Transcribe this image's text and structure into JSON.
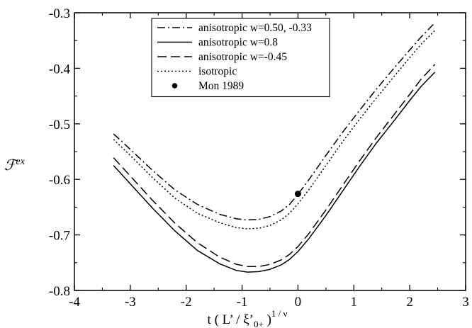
{
  "chart_data": {
    "type": "line",
    "title": "",
    "xlabel": {
      "text": "t ( L’ / ξ’",
      "sub": "0+",
      "close": " )",
      "sup": "1 / ν"
    },
    "ylabel": {
      "main": "ℱ",
      "sup": "ex"
    },
    "xlim": [
      -4,
      3
    ],
    "ylim": [
      -0.8,
      -0.3
    ],
    "xticks": [
      -4,
      -3,
      -2,
      -1,
      0,
      1,
      2,
      3
    ],
    "yticks": [
      -0.8,
      -0.7,
      -0.6,
      -0.5,
      -0.4,
      -0.3
    ],
    "xtick_labels": [
      "-4",
      "-3",
      "-2",
      "-1",
      "0",
      "1",
      "2",
      "3"
    ],
    "ytick_labels": [
      "-0.8",
      "-0.7",
      "-0.6",
      "-0.5",
      "-0.4",
      "-0.3"
    ],
    "grid": false,
    "legend_position": "top-center",
    "series": [
      {
        "name": "anisotropic w=0.50, -0.33",
        "style": "dashdot",
        "color": "#000000",
        "points": [
          [
            -3.3,
            -0.518
          ],
          [
            -3.0,
            -0.546
          ],
          [
            -2.6,
            -0.584
          ],
          [
            -2.2,
            -0.619
          ],
          [
            -1.8,
            -0.645
          ],
          [
            -1.4,
            -0.663
          ],
          [
            -1.1,
            -0.671
          ],
          [
            -0.9,
            -0.673
          ],
          [
            -0.7,
            -0.672
          ],
          [
            -0.5,
            -0.667
          ],
          [
            -0.3,
            -0.657
          ],
          [
            -0.15,
            -0.645
          ],
          [
            0.0,
            -0.627
          ],
          [
            0.2,
            -0.6
          ],
          [
            0.5,
            -0.557
          ],
          [
            0.8,
            -0.515
          ],
          [
            1.1,
            -0.476
          ],
          [
            1.4,
            -0.438
          ],
          [
            1.7,
            -0.402
          ],
          [
            2.0,
            -0.367
          ],
          [
            2.2,
            -0.344
          ],
          [
            2.45,
            -0.318
          ]
        ]
      },
      {
        "name": "anisotropic w=0.8",
        "style": "solid",
        "color": "#000000",
        "points": [
          [
            -3.3,
            -0.575
          ],
          [
            -3.0,
            -0.608
          ],
          [
            -2.6,
            -0.652
          ],
          [
            -2.2,
            -0.693
          ],
          [
            -1.8,
            -0.728
          ],
          [
            -1.4,
            -0.752
          ],
          [
            -1.1,
            -0.764
          ],
          [
            -0.9,
            -0.767
          ],
          [
            -0.7,
            -0.766
          ],
          [
            -0.5,
            -0.762
          ],
          [
            -0.3,
            -0.754
          ],
          [
            -0.15,
            -0.744
          ],
          [
            0.0,
            -0.73
          ],
          [
            0.2,
            -0.706
          ],
          [
            0.5,
            -0.665
          ],
          [
            0.8,
            -0.621
          ],
          [
            1.1,
            -0.577
          ],
          [
            1.4,
            -0.535
          ],
          [
            1.7,
            -0.497
          ],
          [
            2.0,
            -0.458
          ],
          [
            2.2,
            -0.433
          ],
          [
            2.45,
            -0.407
          ]
        ]
      },
      {
        "name": "anisotropic w=-0.45",
        "style": "dashed",
        "color": "#000000",
        "points": [
          [
            -3.3,
            -0.561
          ],
          [
            -3.0,
            -0.594
          ],
          [
            -2.6,
            -0.638
          ],
          [
            -2.2,
            -0.679
          ],
          [
            -1.8,
            -0.714
          ],
          [
            -1.4,
            -0.74
          ],
          [
            -1.1,
            -0.753
          ],
          [
            -0.9,
            -0.757
          ],
          [
            -0.7,
            -0.757
          ],
          [
            -0.5,
            -0.753
          ],
          [
            -0.3,
            -0.745
          ],
          [
            -0.15,
            -0.735
          ],
          [
            0.0,
            -0.721
          ],
          [
            0.2,
            -0.697
          ],
          [
            0.5,
            -0.655
          ],
          [
            0.8,
            -0.611
          ],
          [
            1.1,
            -0.567
          ],
          [
            1.4,
            -0.525
          ],
          [
            1.7,
            -0.486
          ],
          [
            2.0,
            -0.447
          ],
          [
            2.2,
            -0.42
          ],
          [
            2.45,
            -0.393
          ]
        ]
      },
      {
        "name": "isotropic",
        "style": "dotted",
        "color": "#000000",
        "points": [
          [
            -3.3,
            -0.528
          ],
          [
            -3.0,
            -0.557
          ],
          [
            -2.6,
            -0.597
          ],
          [
            -2.2,
            -0.634
          ],
          [
            -1.8,
            -0.661
          ],
          [
            -1.4,
            -0.678
          ],
          [
            -1.1,
            -0.687
          ],
          [
            -0.9,
            -0.689
          ],
          [
            -0.7,
            -0.688
          ],
          [
            -0.5,
            -0.683
          ],
          [
            -0.3,
            -0.673
          ],
          [
            -0.15,
            -0.661
          ],
          [
            0.0,
            -0.644
          ],
          [
            0.2,
            -0.618
          ],
          [
            0.5,
            -0.575
          ],
          [
            0.8,
            -0.532
          ],
          [
            1.1,
            -0.492
          ],
          [
            1.4,
            -0.454
          ],
          [
            1.7,
            -0.417
          ],
          [
            2.0,
            -0.381
          ],
          [
            2.2,
            -0.357
          ],
          [
            2.45,
            -0.332
          ]
        ]
      },
      {
        "name": "Mon 1989",
        "style": "marker",
        "color": "#000000",
        "points": [
          [
            0.0,
            -0.626
          ]
        ]
      }
    ]
  }
}
